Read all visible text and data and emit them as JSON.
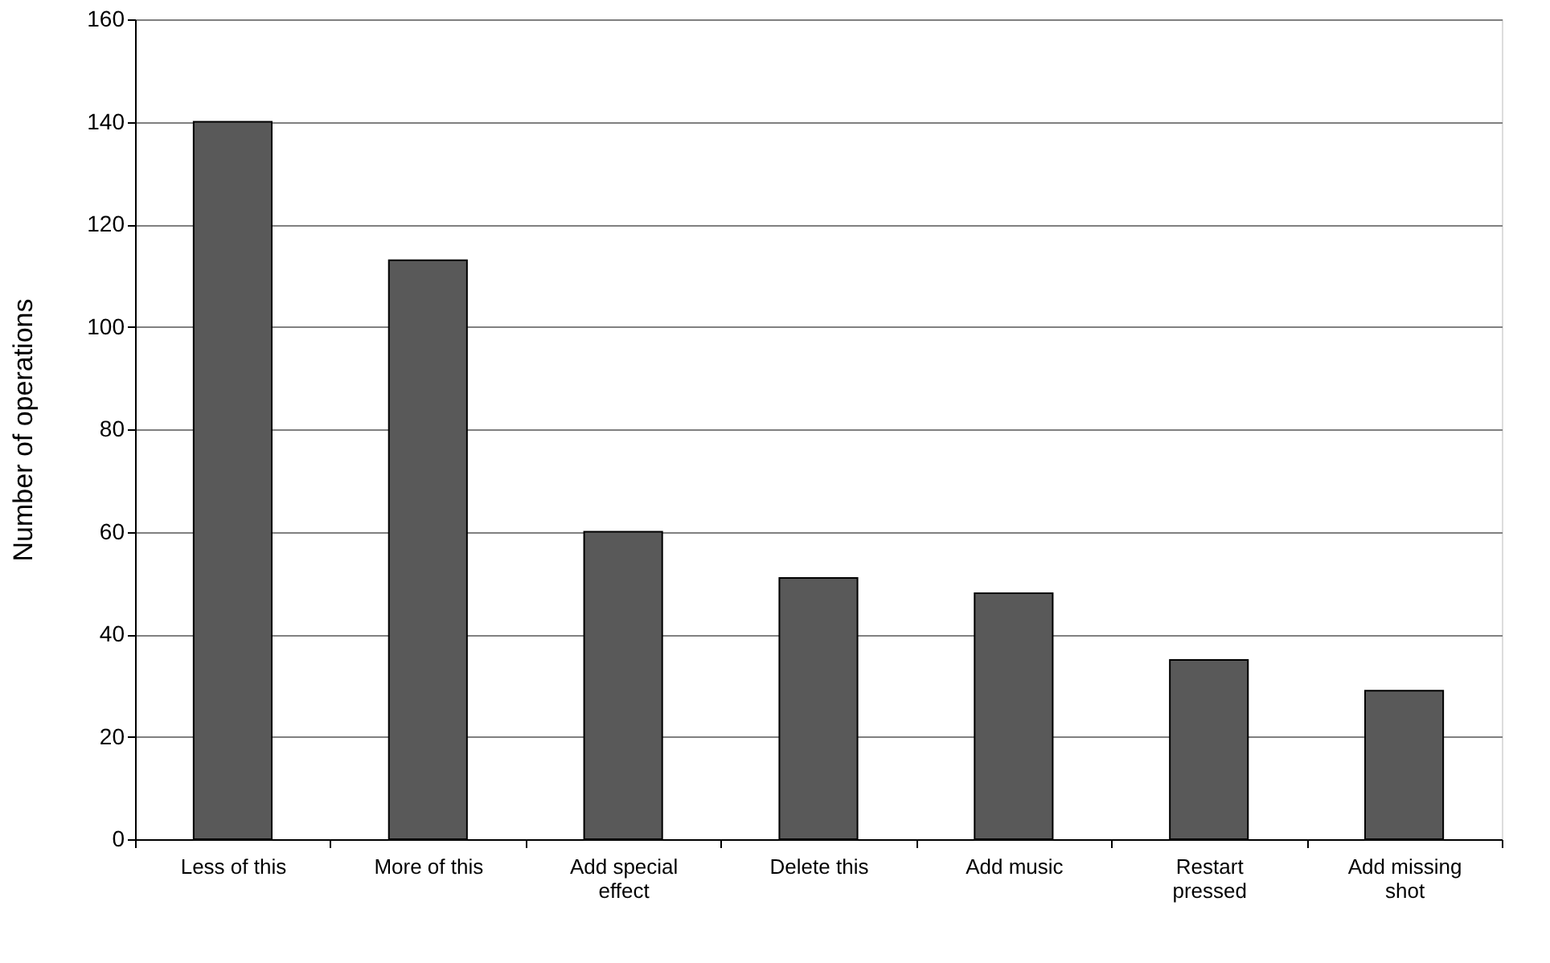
{
  "chart_data": {
    "type": "bar",
    "ylabel": "Number of operations",
    "categories": [
      "Less of this",
      "More of this",
      "Add special effect",
      "Delete this",
      "Add music",
      "Restart pressed",
      "Add missing shot"
    ],
    "values": [
      140,
      113,
      60,
      51,
      48,
      35,
      29
    ],
    "color": "#595959",
    "ylim": [
      0,
      160
    ],
    "yticks": [
      0,
      20,
      40,
      60,
      80,
      100,
      120,
      140,
      160
    ],
    "grid": "y"
  }
}
